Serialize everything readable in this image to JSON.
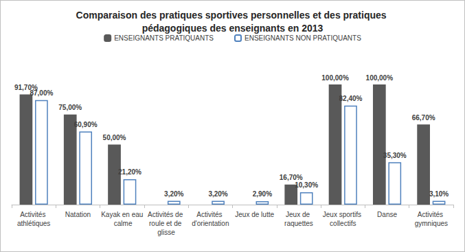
{
  "chart_data": {
    "type": "bar",
    "title": "Comparaison des pratiques sportives personnelles et des pratiques pédagogiques des enseignants en 2013",
    "categories": [
      "Activités athlétiques",
      "Natation",
      "Kayak en eau calme",
      "Activités de roule et de glisse",
      "Activités d'orientation",
      "Jeux de lutte",
      "Jeux de raquettes",
      "Jeux sportifs collectifs",
      "Danse",
      "Activités gymniques"
    ],
    "series": [
      {
        "name": "ENSEIGNANTS PRATIQUANTS",
        "color": "#595959",
        "values": [
          91.7,
          75,
          50,
          null,
          null,
          null,
          16.7,
          100,
          100,
          66.7
        ],
        "value_labels": [
          "91,70%",
          "75,00%",
          "50,00%",
          null,
          null,
          null,
          "16,70%",
          "100,00%",
          "100,00%",
          "66,70%"
        ]
      },
      {
        "name": "ENSEIGNANTS NON PRATIQUANTS",
        "color": "#ffffff",
        "values": [
          87,
          60.9,
          21.2,
          3.2,
          3.2,
          2.9,
          10.3,
          82.4,
          35.3,
          3.1
        ],
        "value_labels": [
          "87,00%",
          "60,90%",
          "21,20%",
          "3,20%",
          "3,20%",
          "2,90%",
          "10,30%",
          "82,40%",
          "35,30%",
          "3,10%"
        ]
      }
    ],
    "ylim": [
      0,
      100
    ],
    "grid": false,
    "legend": "top",
    "data_labels": true,
    "tick_labels": "x"
  }
}
